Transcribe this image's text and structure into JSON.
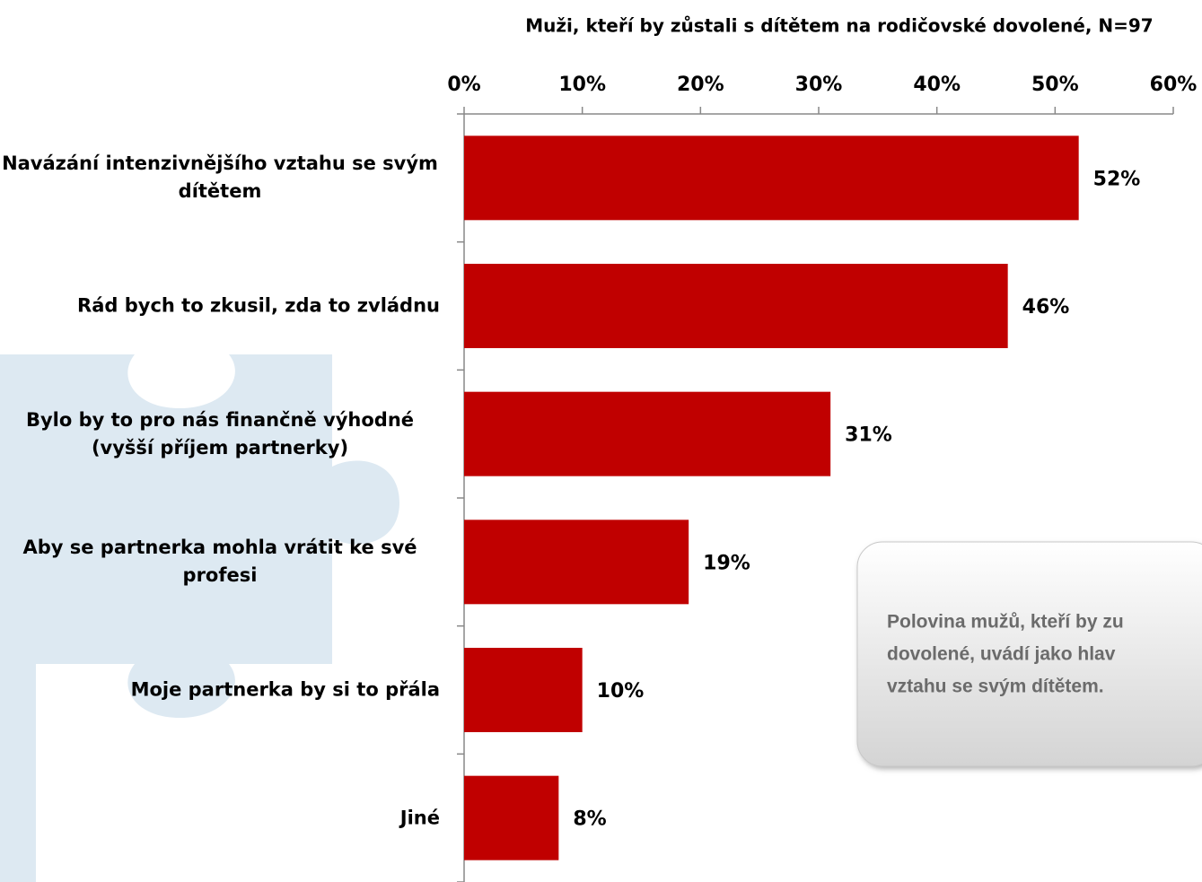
{
  "chart_data": {
    "type": "bar",
    "orientation": "horizontal",
    "title": "Muži, kteří by zůstali s dítětem na rodičovské dovolené, N=97",
    "categories": [
      "Navázání intenzivnějšího  vztahu se svým dítětem",
      "Rád bych to zkusil, zda to zvládnu",
      "Bylo by to pro nás finančně výhodné (vyšší příjem partnerky)",
      "Aby se partnerka mohla vrátit ke své profesi",
      "Moje partnerka by si to přála",
      "Jiné"
    ],
    "values": [
      52,
      46,
      31,
      19,
      10,
      8
    ],
    "value_labels": [
      "52%",
      "46%",
      "31%",
      "19%",
      "10%",
      "8%"
    ],
    "color": "#c00000",
    "xlim": [
      0,
      60
    ],
    "xticks": [
      {
        "value": 0,
        "label": "0%"
      },
      {
        "value": 10,
        "label": "10%"
      },
      {
        "value": 20,
        "label": "20%"
      },
      {
        "value": 30,
        "label": "30%"
      },
      {
        "value": 40,
        "label": "40%"
      },
      {
        "value": 50,
        "label": "50%"
      },
      {
        "value": 60,
        "label": "60%"
      }
    ],
    "annotation": [
      "Polovina mužů, kteří by zu",
      "dovolené, uvádí jako hlav",
      "vztahu se svým dítětem."
    ]
  }
}
